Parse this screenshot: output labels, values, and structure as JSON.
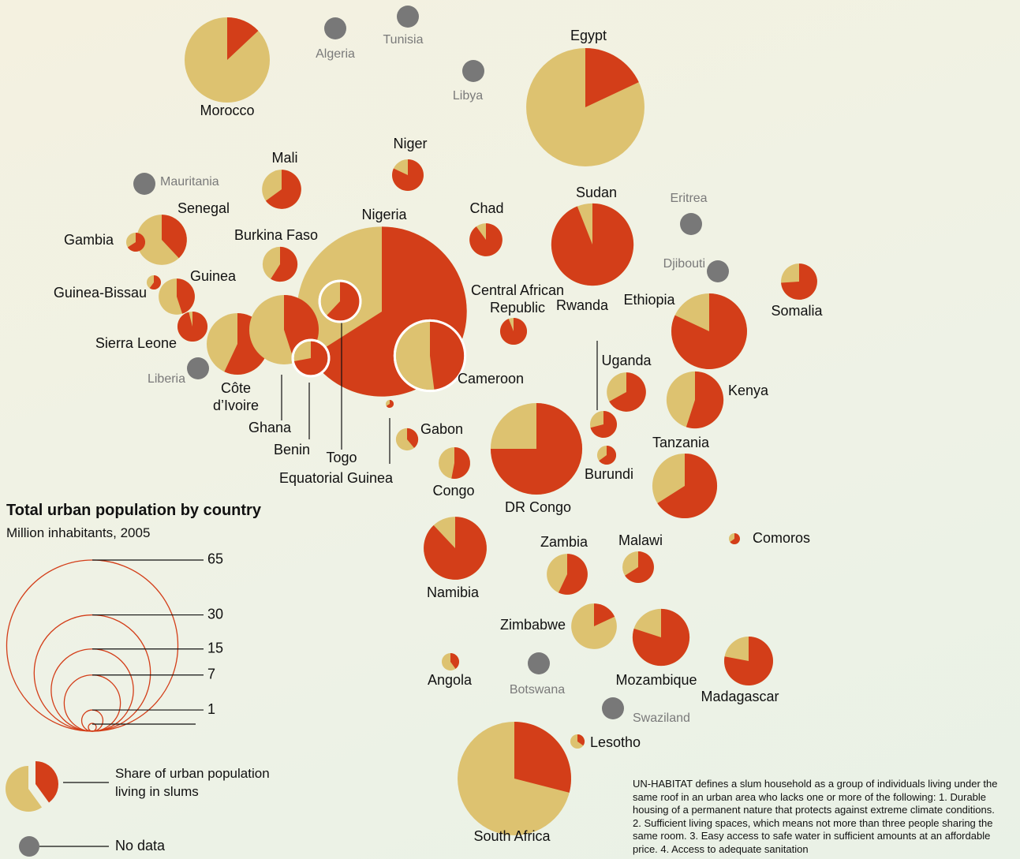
{
  "chart_data": {
    "type": "bubble-pie",
    "title": "Total urban population by country",
    "subtitle": "Million inhabitants, 2005",
    "slum_color": "#d33e19",
    "non_slum_color": "#ddc270",
    "no_data_color": "#787878",
    "size_legend": [
      65,
      30,
      15,
      7,
      1
    ],
    "share_label": "Share of urban population living in slums",
    "no_data_label": "No data",
    "note": "UN-HABITAT defines a slum household as a group of individuals living under the same roof in an urban area who lacks one or more of the following: 1. Durable housing of a permanent nature that protects against extreme climate conditions. 2. Sufficient living spaces, which means not more than three people sharing the same room. 3. Easy access to safe water in sufficient amounts at an affordable price. 4. Access to adequate sanitation",
    "countries": [
      {
        "name": "Morocco",
        "population": 16.1,
        "slum_share": 13
      },
      {
        "name": "Algeria",
        "population": null,
        "slum_share": null
      },
      {
        "name": "Tunisia",
        "population": null,
        "slum_share": null
      },
      {
        "name": "Libya",
        "population": null,
        "slum_share": null
      },
      {
        "name": "Egypt",
        "population": 31,
        "slum_share": 18
      },
      {
        "name": "Niger",
        "population": 2.2,
        "slum_share": 82
      },
      {
        "name": "Mali",
        "population": 3.4,
        "slum_share": 65
      },
      {
        "name": "Mauritania",
        "population": null,
        "slum_share": null
      },
      {
        "name": "Senegal",
        "population": 5.6,
        "slum_share": 38
      },
      {
        "name": "Gambia",
        "population": 0.8,
        "slum_share": 66
      },
      {
        "name": "Burkina Faso",
        "population": 2.7,
        "slum_share": 59
      },
      {
        "name": "Nigeria",
        "population": 64,
        "slum_share": 66
      },
      {
        "name": "Chad",
        "population": 2.4,
        "slum_share": 90
      },
      {
        "name": "Sudan",
        "population": 15,
        "slum_share": 94
      },
      {
        "name": "Eritrea",
        "population": null,
        "slum_share": null
      },
      {
        "name": "Djibouti",
        "population": null,
        "slum_share": null
      },
      {
        "name": "Guinea-Bissau",
        "population": 0.45,
        "slum_share": 60
      },
      {
        "name": "Guinea",
        "population": 2.9,
        "slum_share": 45
      },
      {
        "name": "Sierra Leone",
        "population": 2,
        "slum_share": 96
      },
      {
        "name": "Liberia",
        "population": null,
        "slum_share": null
      },
      {
        "name": "Côte d’Ivoire",
        "population": 8.4,
        "slum_share": 57
      },
      {
        "name": "Ghana",
        "population": 10.7,
        "slum_share": 45
      },
      {
        "name": "Togo",
        "population": 3.7,
        "slum_share": 62
      },
      {
        "name": "Benin",
        "population": 2.9,
        "slum_share": 72
      },
      {
        "name": "Cameroon",
        "population": 11,
        "slum_share": 48
      },
      {
        "name": "Central African Republic",
        "population": 1.6,
        "slum_share": 94
      },
      {
        "name": "Equatorial Guinea",
        "population": 0.14,
        "slum_share": 66
      },
      {
        "name": "Gabon",
        "population": 1.1,
        "slum_share": 39
      },
      {
        "name": "Congo",
        "population": 2.2,
        "slum_share": 53
      },
      {
        "name": "DR Congo",
        "population": 18.6,
        "slum_share": 75
      },
      {
        "name": "Rwanda",
        "population": 1.6,
        "slum_share": 71
      },
      {
        "name": "Uganda",
        "population": 3.4,
        "slum_share": 67
      },
      {
        "name": "Burundi",
        "population": 0.8,
        "slum_share": 65
      },
      {
        "name": "Ethiopia",
        "population": 12.7,
        "slum_share": 82
      },
      {
        "name": "Somalia",
        "population": 2.9,
        "slum_share": 74
      },
      {
        "name": "Kenya",
        "population": 7.2,
        "slum_share": 55
      },
      {
        "name": "Tanzania",
        "population": 9.3,
        "slum_share": 66
      },
      {
        "name": "Comoros",
        "population": 0.27,
        "slum_share": 65
      },
      {
        "name": "Namibia",
        "population": 8.8,
        "slum_share": 88
      },
      {
        "name": "Zambia",
        "population": 3.7,
        "slum_share": 57
      },
      {
        "name": "Malawi",
        "population": 2.2,
        "slum_share": 66
      },
      {
        "name": "Zimbabwe",
        "population": 4.6,
        "slum_share": 18
      },
      {
        "name": "Angola",
        "population": 0.67,
        "slum_share": 40
      },
      {
        "name": "Botswana",
        "population": null,
        "slum_share": null
      },
      {
        "name": "Mozambique",
        "population": 7.2,
        "slum_share": 80
      },
      {
        "name": "Madagascar",
        "population": 5.3,
        "slum_share": 78
      },
      {
        "name": "Swaziland",
        "population": null,
        "slum_share": null
      },
      {
        "name": "Lesotho",
        "population": 0.45,
        "slum_share": 35
      },
      {
        "name": "South Africa",
        "population": 28.6,
        "slum_share": 29
      }
    ]
  }
}
